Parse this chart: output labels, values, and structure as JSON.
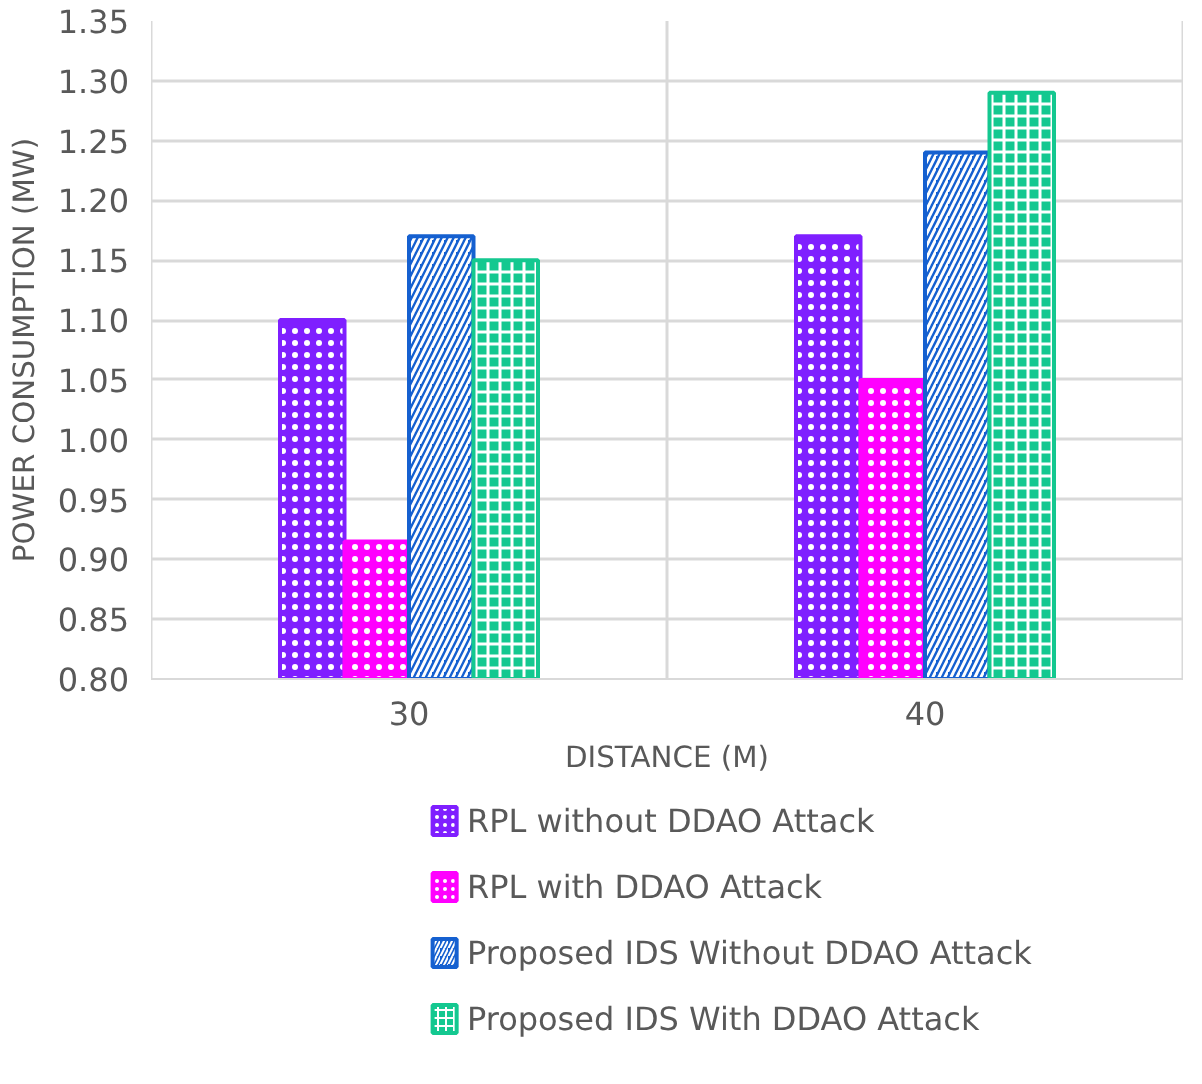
{
  "chart_data": {
    "type": "bar",
    "xlabel": "DISTANCE (M)",
    "ylabel": "POWER CONSUMPTION (MW)",
    "categories": [
      "30",
      "40"
    ],
    "series": [
      {
        "name": "RPL without DDAO Attack",
        "color": "#7f1fff",
        "values": [
          1.1,
          1.17
        ]
      },
      {
        "name": "RPL with DDAO  Attack",
        "color": "#ff00ff",
        "values": [
          0.915,
          1.05
        ]
      },
      {
        "name": "Proposed IDS Without DDAO  Attack",
        "color": "#1560d0",
        "values": [
          1.17,
          1.24
        ]
      },
      {
        "name": "Proposed IDS With DDAO Attack",
        "color": "#14c890",
        "values": [
          1.15,
          1.29
        ]
      }
    ],
    "ylim": [
      0.8,
      1.35
    ],
    "yticks": [
      {
        "value": 0.8,
        "label": "0.80"
      },
      0.85,
      {
        "value": 0.9,
        "label": "0.90"
      },
      0.95,
      {
        "value": 1.0,
        "label": "1.00"
      },
      1.05,
      {
        "value": 1.1,
        "label": "1.10"
      },
      1.15,
      {
        "value": 1.2,
        "label": "1.20"
      },
      1.25,
      {
        "value": 1.3,
        "label": "1.30"
      },
      1.35
    ],
    "grid": true,
    "legend": "bottom"
  }
}
